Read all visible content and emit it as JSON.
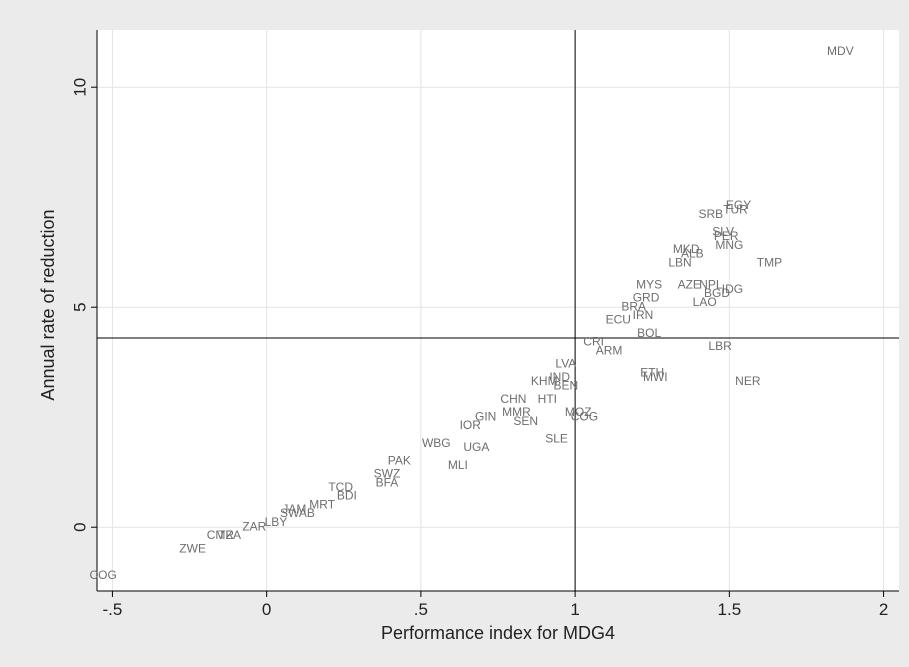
{
  "chart_data": {
    "type": "scatter",
    "title": "",
    "xlabel": "Performance index for MDG4",
    "ylabel": "Annual rate of reduction",
    "xlim": [
      -0.55,
      2.05
    ],
    "ylim": [
      -1.45,
      11.3
    ],
    "x_ticks": [
      {
        "value": -0.5,
        "label": "-.5"
      },
      {
        "value": 0,
        "label": "0"
      },
      {
        "value": 0.5,
        "label": ".5"
      },
      {
        "value": 1,
        "label": "1"
      },
      {
        "value": 1.5,
        "label": "1.5"
      },
      {
        "value": 2,
        "label": "2"
      }
    ],
    "y_ticks": [
      {
        "value": 0,
        "label": "0"
      },
      {
        "value": 5,
        "label": "5"
      },
      {
        "value": 10,
        "label": "10"
      }
    ],
    "grid": true,
    "reference_lines": {
      "x": 1,
      "y": 4.3
    },
    "marker": "country-code labels",
    "points": [
      {
        "label": "MDV",
        "x": 1.86,
        "y": 10.8
      },
      {
        "label": "EGY",
        "x": 1.53,
        "y": 7.3
      },
      {
        "label": "TUR",
        "x": 1.52,
        "y": 7.2
      },
      {
        "label": "SRB",
        "x": 1.44,
        "y": 7.1
      },
      {
        "label": "SLV",
        "x": 1.48,
        "y": 6.7
      },
      {
        "label": "PER",
        "x": 1.49,
        "y": 6.6
      },
      {
        "label": "MNG",
        "x": 1.5,
        "y": 6.4
      },
      {
        "label": "MKD",
        "x": 1.36,
        "y": 6.3
      },
      {
        "label": "ALB",
        "x": 1.38,
        "y": 6.2
      },
      {
        "label": "LBN",
        "x": 1.34,
        "y": 6.0
      },
      {
        "label": "TMP",
        "x": 1.63,
        "y": 6.0
      },
      {
        "label": "MYS",
        "x": 1.24,
        "y": 5.5
      },
      {
        "label": "AZE",
        "x": 1.37,
        "y": 5.5
      },
      {
        "label": "NPL",
        "x": 1.44,
        "y": 5.5
      },
      {
        "label": "IDG",
        "x": 1.51,
        "y": 5.4
      },
      {
        "label": "GRD",
        "x": 1.23,
        "y": 5.2
      },
      {
        "label": "BGD",
        "x": 1.46,
        "y": 5.3
      },
      {
        "label": "LAO",
        "x": 1.42,
        "y": 5.1
      },
      {
        "label": "BRA",
        "x": 1.19,
        "y": 5.0
      },
      {
        "label": "IRN",
        "x": 1.22,
        "y": 4.8
      },
      {
        "label": "ECU",
        "x": 1.14,
        "y": 4.7
      },
      {
        "label": "BOL",
        "x": 1.24,
        "y": 4.4
      },
      {
        "label": "LBR",
        "x": 1.47,
        "y": 4.1
      },
      {
        "label": "CRI",
        "x": 1.06,
        "y": 4.2
      },
      {
        "label": "ARM",
        "x": 1.11,
        "y": 4.0
      },
      {
        "label": "ETH",
        "x": 1.25,
        "y": 3.5
      },
      {
        "label": "MWI",
        "x": 1.26,
        "y": 3.4
      },
      {
        "label": "NER",
        "x": 1.56,
        "y": 3.3
      },
      {
        "label": "LVA",
        "x": 0.97,
        "y": 3.7
      },
      {
        "label": "IND",
        "x": 0.95,
        "y": 3.4
      },
      {
        "label": "KHM",
        "x": 0.9,
        "y": 3.3
      },
      {
        "label": "BEN",
        "x": 0.97,
        "y": 3.2
      },
      {
        "label": "HTI",
        "x": 0.91,
        "y": 2.9
      },
      {
        "label": "CHN",
        "x": 0.8,
        "y": 2.9
      },
      {
        "label": "MOZ",
        "x": 1.01,
        "y": 2.6
      },
      {
        "label": "COG",
        "x": 1.03,
        "y": 2.5
      },
      {
        "label": "MMR",
        "x": 0.81,
        "y": 2.6
      },
      {
        "label": "GIN",
        "x": 0.71,
        "y": 2.5
      },
      {
        "label": "SEN",
        "x": 0.84,
        "y": 2.4
      },
      {
        "label": "IOR",
        "x": 0.66,
        "y": 2.3
      },
      {
        "label": "SLE",
        "x": 0.94,
        "y": 2.0
      },
      {
        "label": "UGA",
        "x": 0.68,
        "y": 1.8
      },
      {
        "label": "WBG",
        "x": 0.55,
        "y": 1.9
      },
      {
        "label": "MLI",
        "x": 0.62,
        "y": 1.4
      },
      {
        "label": "PAK",
        "x": 0.43,
        "y": 1.5
      },
      {
        "label": "SWZ",
        "x": 0.39,
        "y": 1.2
      },
      {
        "label": "BFA",
        "x": 0.39,
        "y": 1.0
      },
      {
        "label": "TCD",
        "x": 0.24,
        "y": 0.9
      },
      {
        "label": "BDI",
        "x": 0.26,
        "y": 0.7
      },
      {
        "label": "MRT",
        "x": 0.18,
        "y": 0.5
      },
      {
        "label": "JAM",
        "x": 0.09,
        "y": 0.4
      },
      {
        "label": "SWAB",
        "x": 0.1,
        "y": 0.3
      },
      {
        "label": "LBY",
        "x": 0.03,
        "y": 0.1
      },
      {
        "label": "ZAR",
        "x": -0.04,
        "y": 0.0
      },
      {
        "label": "CMR",
        "x": -0.15,
        "y": -0.2
      },
      {
        "label": "TZA",
        "x": -0.12,
        "y": -0.2
      },
      {
        "label": "ZWE",
        "x": -0.24,
        "y": -0.5
      },
      {
        "label": "COG",
        "x": -0.53,
        "y": -1.1
      }
    ]
  }
}
